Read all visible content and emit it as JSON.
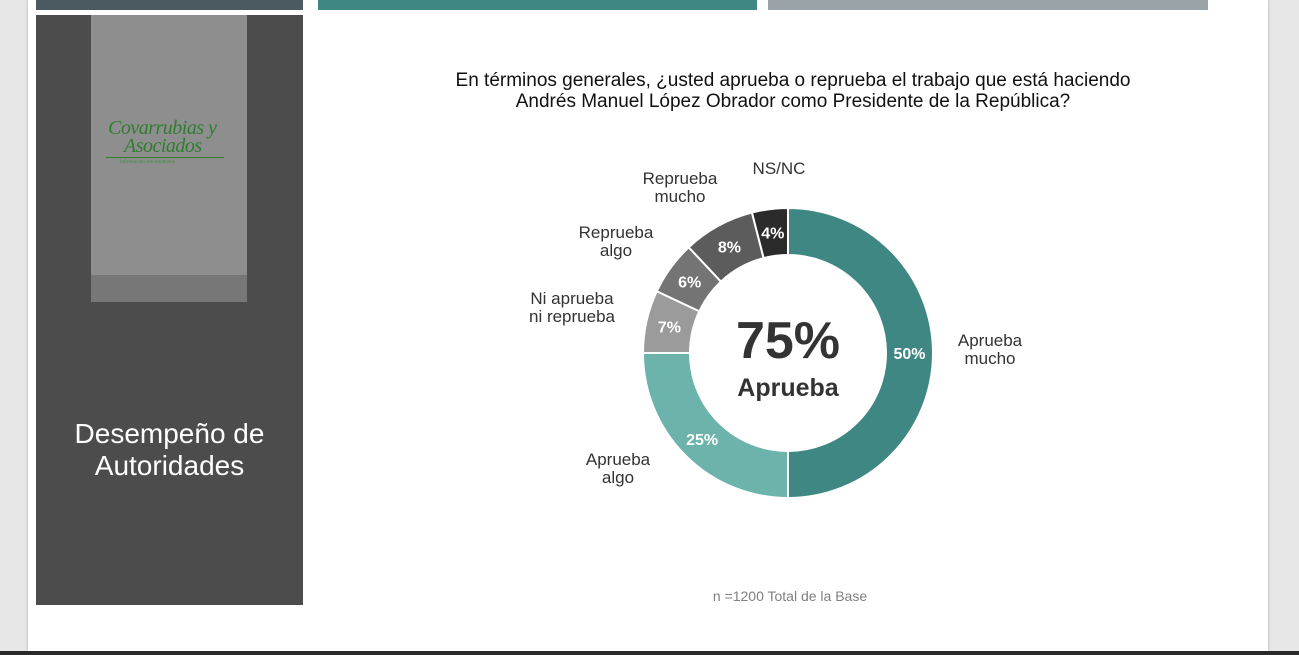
{
  "sidebar": {
    "logo": {
      "line1": "Covarrubias y",
      "line2": "Asociados",
      "tagline": "Información con resultados"
    },
    "title_line1": "Desempeño de",
    "title_line2": "Autoridades"
  },
  "colors": {
    "top_bar_1": "#4b5961",
    "top_bar_2": "#3f8782",
    "top_bar_3": "#9aa3a8",
    "sidebar": "#4c4c4c",
    "logo": "#2f7d2f"
  },
  "chart_data": {
    "type": "pie",
    "donut": true,
    "title_line1": "En términos generales, ¿usted aprueba o reprueba el trabajo que está haciendo",
    "title_line2": "Andrés Manuel López Obrador como Presidente de la República?",
    "center_value": "75%",
    "center_label": "Aprueba",
    "slices": [
      {
        "label_lines": [
          "Aprueba",
          "mucho"
        ],
        "value": 50,
        "value_label": "50%",
        "color": "#3f8782"
      },
      {
        "label_lines": [
          "Aprueba",
          "algo"
        ],
        "value": 25,
        "value_label": "25%",
        "color": "#6cb3ac"
      },
      {
        "label_lines": [
          "Ni aprueba",
          "ni reprueba"
        ],
        "value": 7,
        "value_label": "7%",
        "color": "#9b9b9b"
      },
      {
        "label_lines": [
          "Reprueba",
          "algo"
        ],
        "value": 6,
        "value_label": "6%",
        "color": "#747474"
      },
      {
        "label_lines": [
          "Reprueba",
          "mucho"
        ],
        "value": 8,
        "value_label": "8%",
        "color": "#5c5c5c"
      },
      {
        "label_lines": [
          "NS/NC"
        ],
        "value": 4,
        "value_label": "4%",
        "color": "#2b2b2b"
      }
    ],
    "note": "n =1200 Total de la Base"
  }
}
